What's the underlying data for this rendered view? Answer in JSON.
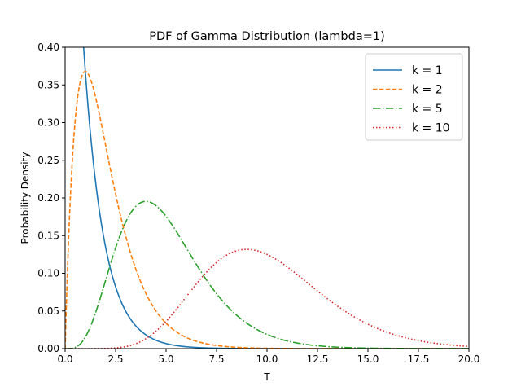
{
  "chart_data": {
    "type": "line",
    "title": "PDF of Gamma Distribution (lambda=1)",
    "xlabel": "T",
    "ylabel": "Probability Density",
    "xlim": [
      0,
      20
    ],
    "ylim": [
      0,
      0.4
    ],
    "x_ticks": [
      "0.0",
      "2.5",
      "5.0",
      "7.5",
      "10.0",
      "12.5",
      "15.0",
      "17.5",
      "20.0"
    ],
    "y_ticks": [
      "0.00",
      "0.05",
      "0.10",
      "0.15",
      "0.20",
      "0.25",
      "0.30",
      "0.35",
      "0.40"
    ],
    "legend_position": "top-right",
    "grid": false,
    "series": [
      {
        "name": "k = 1",
        "k": 1,
        "lambda": 1,
        "color": "#1f77b4",
        "style": "solid"
      },
      {
        "name": "k = 2",
        "k": 2,
        "lambda": 1,
        "color": "#ff7f0e",
        "style": "dashed"
      },
      {
        "name": "k = 5",
        "k": 5,
        "lambda": 1,
        "color": "#2ca02c",
        "style": "dashdot"
      },
      {
        "name": "k = 10",
        "k": 10,
        "lambda": 1,
        "color": "#d62728",
        "style": "dotted"
      }
    ]
  }
}
